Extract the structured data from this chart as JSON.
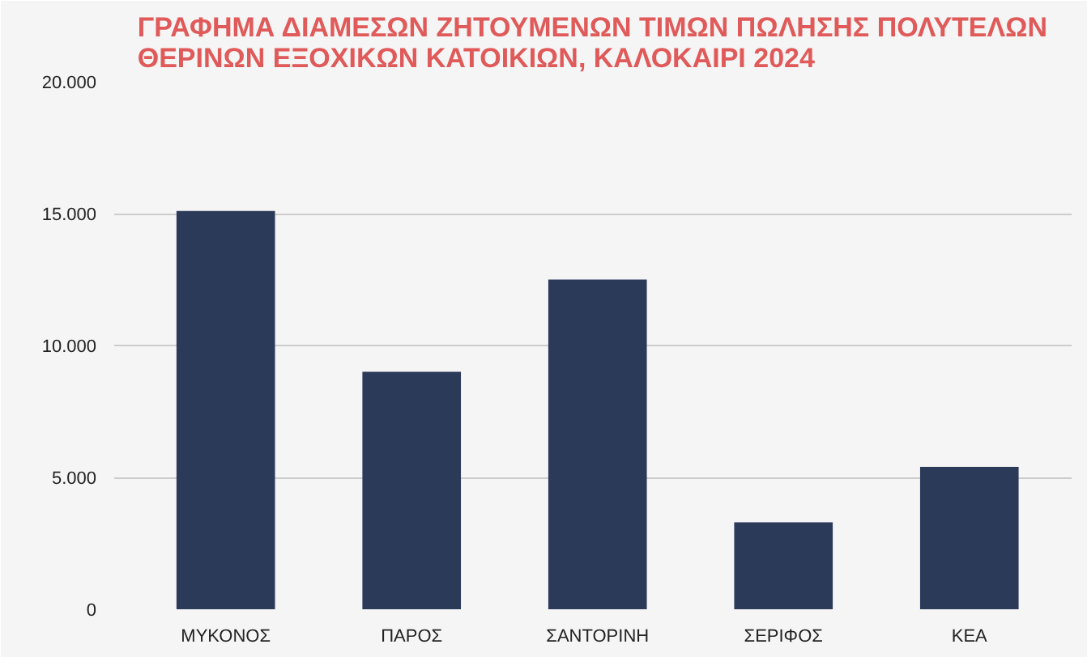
{
  "chart_data": {
    "type": "bar",
    "title": "ΓΡΑΦΗΜΑ ΔΙΑΜΕΣΩΝ ΖΗΤΟΥΜΕΝΩΝ ΤΙΜΩΝ ΠΩΛΗΣΗΣ ΠΟΛΥΤΕΛΩΝ ΘΕΡΙΝΩΝ ΕΞΟΧΙΚΩΝ ΚΑΤΟΙΚΙΩΝ, ΚΑΛΟΚΑΙΡΙ 2024",
    "categories": [
      "ΜΥΚΟΝΟΣ",
      "ΠΑΡΟΣ",
      "ΣΑΝΤΟΡΙΝΗ",
      "ΣΕΡΙΦΟΣ",
      "ΚΕΑ"
    ],
    "values": [
      15100,
      9000,
      12500,
      3300,
      5400
    ],
    "color": "#2c3a5a",
    "ylim": [
      0,
      20000
    ],
    "yticks": [
      {
        "value": 0,
        "label": "0"
      },
      {
        "value": 5000,
        "label": "5.000"
      },
      {
        "value": 10000,
        "label": "10.000"
      },
      {
        "value": 15000,
        "label": "15.000"
      },
      {
        "value": 20000,
        "label": "20.000"
      }
    ],
    "grid": "y"
  }
}
